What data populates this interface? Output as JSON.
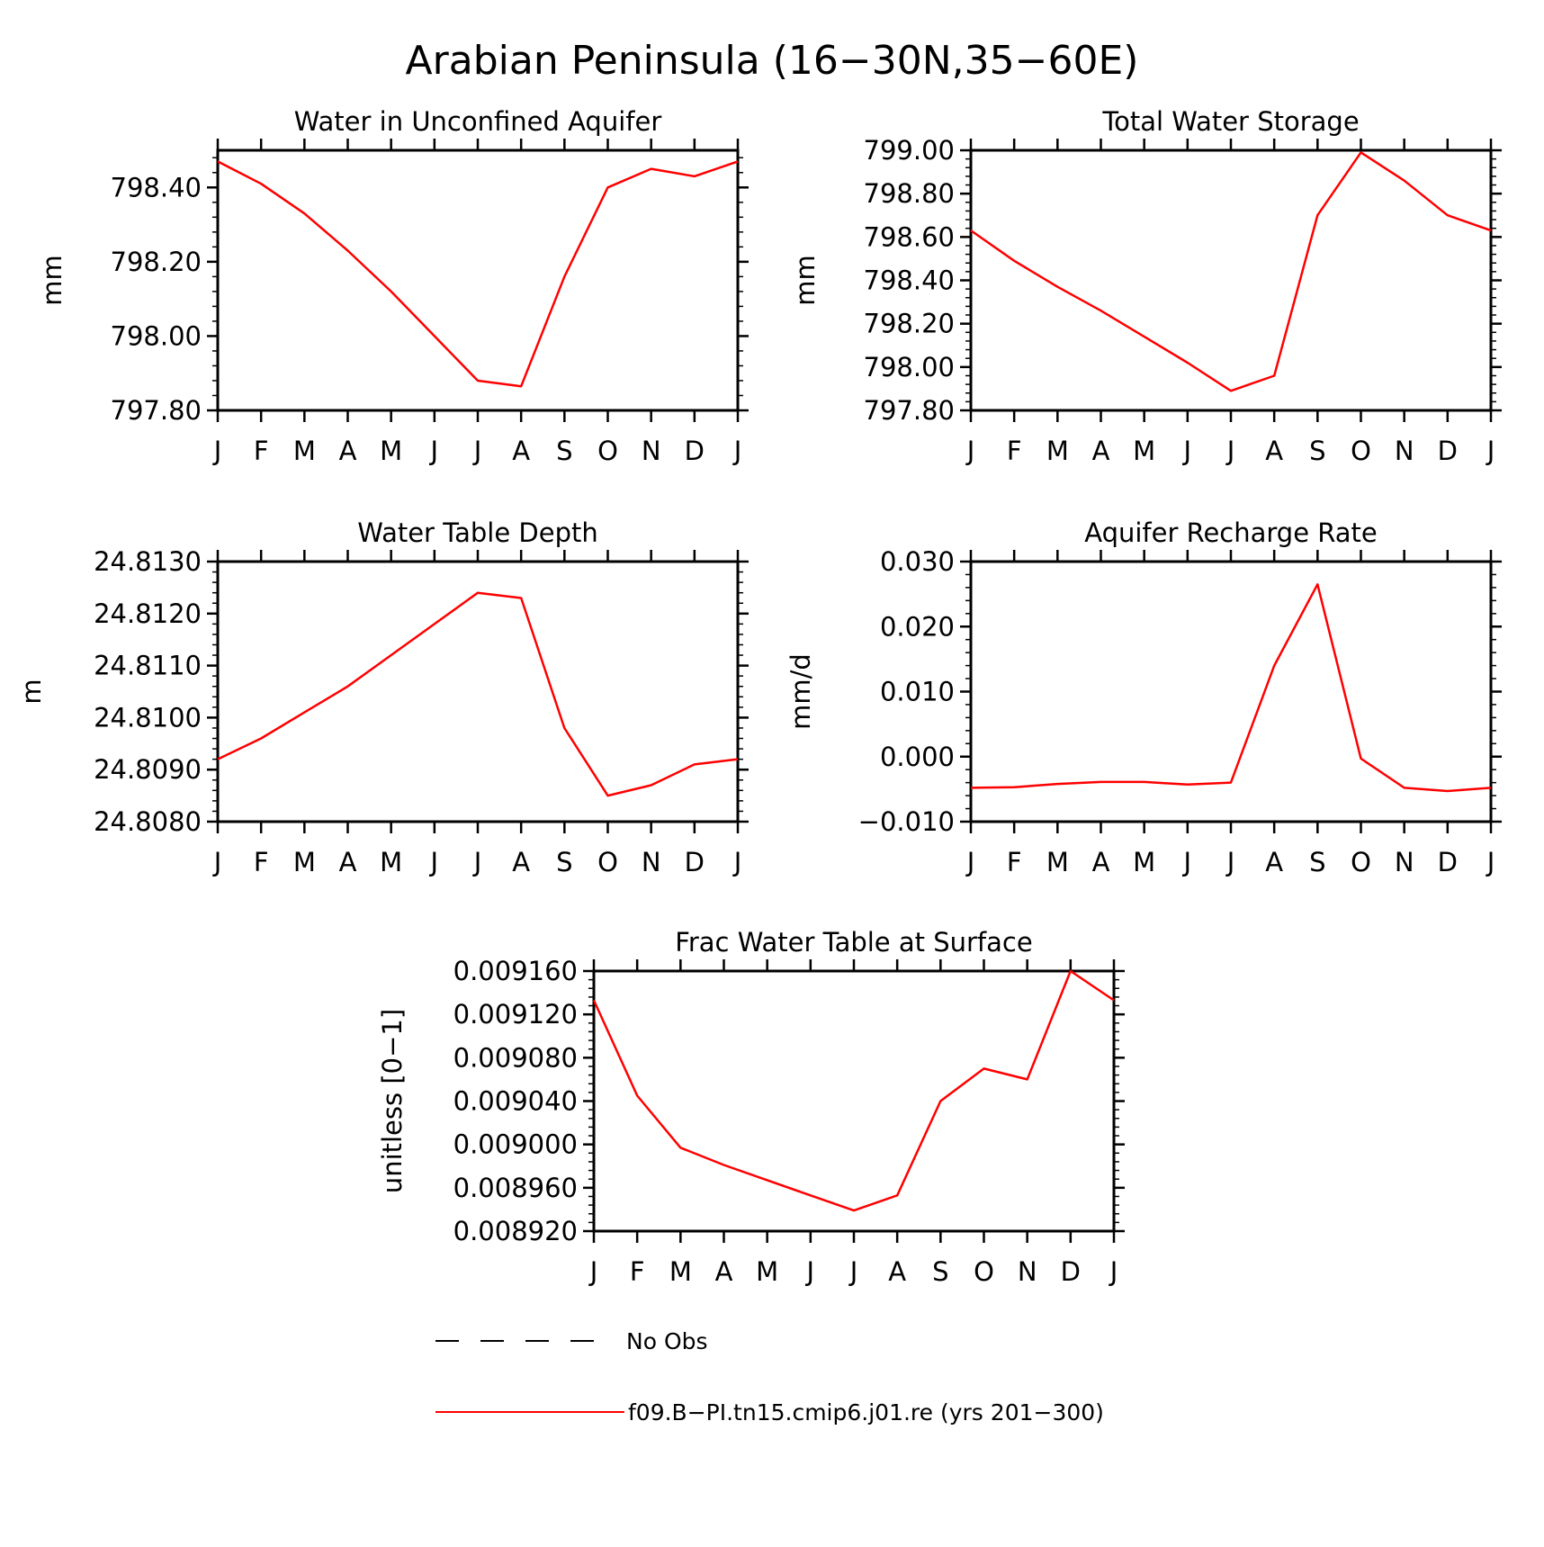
{
  "page_title": "Arabian Peninsula (16−30N,35−60E)",
  "legend": {
    "obs_label": "No Obs",
    "model_label": "f09.B−PI.tn15.cmip6.j01.re (yrs 201−300)"
  },
  "colors": {
    "model_line": "#ff0000",
    "axes": "#000000",
    "obs_line": "#000000"
  },
  "chart_data": [
    {
      "type": "line",
      "title": "Water in Unconfined Aquifer",
      "ylabel": "mm",
      "categories": [
        "J",
        "F",
        "M",
        "A",
        "M",
        "J",
        "J",
        "A",
        "S",
        "O",
        "N",
        "D",
        "J"
      ],
      "ylim": [
        797.8,
        798.5
      ],
      "yticks": [
        "797.80",
        "798.00",
        "798.20",
        "798.40"
      ],
      "yticks_values": [
        797.8,
        798.0,
        798.2,
        798.4
      ],
      "series": [
        {
          "name": "f09.B−PI.tn15.cmip6.j01.re (yrs 201−300)",
          "values": [
            798.47,
            798.41,
            798.33,
            798.23,
            798.12,
            798.0,
            797.88,
            797.865,
            798.16,
            798.4,
            798.45,
            798.43,
            798.47
          ]
        }
      ]
    },
    {
      "type": "line",
      "title": "Total Water Storage",
      "ylabel": "mm",
      "categories": [
        "J",
        "F",
        "M",
        "A",
        "M",
        "J",
        "J",
        "A",
        "S",
        "O",
        "N",
        "D",
        "J"
      ],
      "ylim": [
        797.8,
        799.0
      ],
      "yticks": [
        "797.80",
        "798.00",
        "798.20",
        "798.40",
        "798.60",
        "798.80",
        "799.00"
      ],
      "yticks_values": [
        797.8,
        798.0,
        798.2,
        798.4,
        798.6,
        798.8,
        799.0
      ],
      "series": [
        {
          "name": "f09.B−PI.tn15.cmip6.j01.re (yrs 201−300)",
          "values": [
            798.63,
            798.49,
            798.37,
            798.26,
            798.14,
            798.02,
            797.89,
            797.96,
            798.7,
            798.99,
            798.86,
            798.7,
            798.63
          ]
        }
      ]
    },
    {
      "type": "line",
      "title": "Water Table Depth",
      "ylabel": "m",
      "categories": [
        "J",
        "F",
        "M",
        "A",
        "M",
        "J",
        "J",
        "A",
        "S",
        "O",
        "N",
        "D",
        "J"
      ],
      "ylim": [
        24.808,
        24.813
      ],
      "yticks": [
        "24.8080",
        "24.8090",
        "24.8100",
        "24.8110",
        "24.8120",
        "24.8130"
      ],
      "yticks_values": [
        24.808,
        24.809,
        24.81,
        24.811,
        24.812,
        24.813
      ],
      "series": [
        {
          "name": "f09.B−PI.tn15.cmip6.j01.re (yrs 201−300)",
          "values": [
            24.8092,
            24.8096,
            24.8101,
            24.8106,
            24.8112,
            24.8118,
            24.8124,
            24.8123,
            24.8098,
            24.8085,
            24.8087,
            24.8091,
            24.8092
          ]
        }
      ]
    },
    {
      "type": "line",
      "title": "Aquifer Recharge Rate",
      "ylabel": "mm/d",
      "categories": [
        "J",
        "F",
        "M",
        "A",
        "M",
        "J",
        "J",
        "A",
        "S",
        "O",
        "N",
        "D",
        "J"
      ],
      "ylim": [
        -0.01,
        0.03
      ],
      "yticks": [
        "−0.010",
        "0.000",
        "0.010",
        "0.020",
        "0.030"
      ],
      "yticks_values": [
        -0.01,
        0.0,
        0.01,
        0.02,
        0.03
      ],
      "series": [
        {
          "name": "f09.B−PI.tn15.cmip6.j01.re (yrs 201−300)",
          "values": [
            -0.0048,
            -0.0047,
            -0.0042,
            -0.0039,
            -0.0039,
            -0.0043,
            -0.004,
            0.014,
            0.0265,
            -0.0003,
            -0.0048,
            -0.0053,
            -0.0048
          ]
        }
      ]
    },
    {
      "type": "line",
      "title": "Frac Water Table at Surface",
      "ylabel": "unitless [0−1]",
      "categories": [
        "J",
        "F",
        "M",
        "A",
        "M",
        "J",
        "J",
        "A",
        "S",
        "O",
        "N",
        "D",
        "J"
      ],
      "ylim": [
        0.00892,
        0.00916
      ],
      "yticks": [
        "0.008920",
        "0.008960",
        "0.009000",
        "0.009040",
        "0.009080",
        "0.009120",
        "0.009160"
      ],
      "yticks_values": [
        0.00892,
        0.00896,
        0.009,
        0.00904,
        0.00908,
        0.00912,
        0.00916
      ],
      "series": [
        {
          "name": "f09.B−PI.tn15.cmip6.j01.re (yrs 201−300)",
          "values": [
            0.009133,
            0.009045,
            0.008997,
            0.008981,
            0.008967,
            0.008953,
            0.008939,
            0.008953,
            0.00904,
            0.00907,
            0.00906,
            0.00916,
            0.009133
          ]
        }
      ]
    }
  ]
}
